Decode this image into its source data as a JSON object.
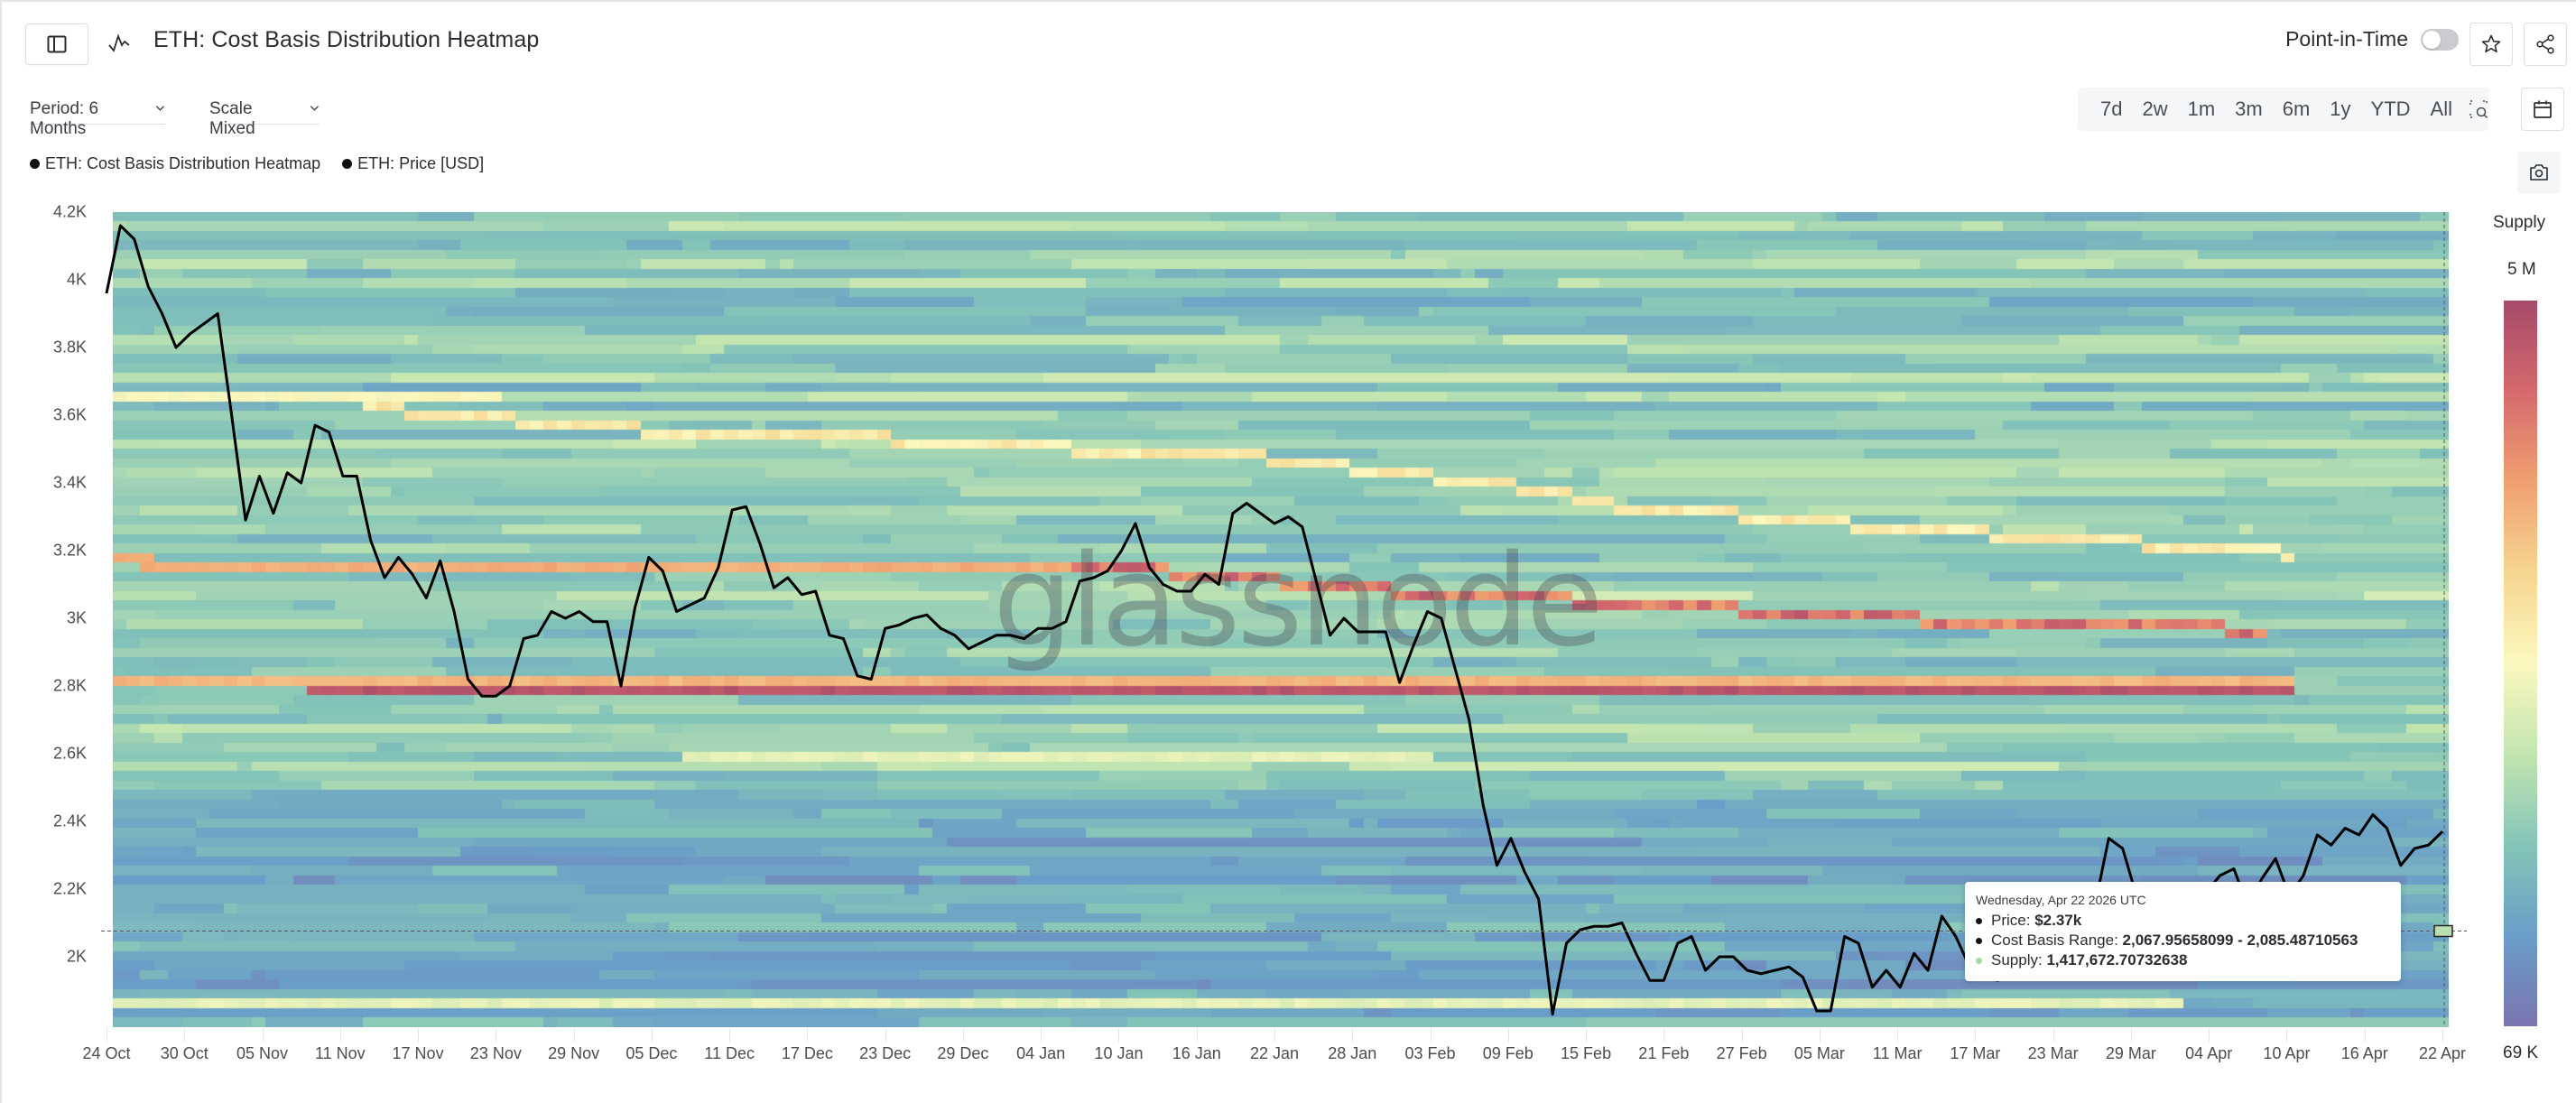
{
  "header": {
    "title": "ETH: Cost Basis Distribution Heatmap",
    "point_in_time_label": "Point-in-Time",
    "point_in_time_enabled": false
  },
  "controls": {
    "period_label": "Period: 6 Months",
    "scale_label": "Scale Mixed",
    "ranges": [
      "7d",
      "2w",
      "1m",
      "3m",
      "6m",
      "1y",
      "YTD",
      "All"
    ]
  },
  "icons": {
    "sidebar_toggle": "sidebar-icon",
    "title": "chart-pulse-icon",
    "star": "star-icon",
    "share": "share-icon",
    "zoom": "zoom-select-icon",
    "calendar": "calendar-icon",
    "camera": "camera-icon"
  },
  "legend": {
    "items": [
      {
        "label": "ETH: Cost Basis Distribution Heatmap",
        "color": "#111111"
      },
      {
        "label": "ETH: Price [USD]",
        "color": "#111111"
      }
    ]
  },
  "watermark": "glassnode",
  "colorbar": {
    "title": "Supply",
    "max_label": "5 M",
    "min_label": "69 K",
    "stops": [
      "#a54a6a",
      "#d5696d",
      "#f0a070",
      "#f6d690",
      "#fbf8bf",
      "#c3e5b0",
      "#85c5b8",
      "#6a9ec8",
      "#7a74b0"
    ]
  },
  "tooltip": {
    "date": "Wednesday, Apr 22 2026 UTC",
    "price_label": "Price: ",
    "price_value": "$2.37k",
    "range_label": "Cost Basis Range: ",
    "range_value": "2,067.95658099 - 2,085.48710563",
    "supply_label": "Supply: ",
    "supply_value": "1,417,672.70732638"
  },
  "chart_data": {
    "type": "heatmap",
    "title": "ETH: Cost Basis Distribution Heatmap",
    "xlabel": "",
    "ylabel": "",
    "ylim": [
      1790,
      4200
    ],
    "y_ticks": [
      {
        "label": "4.2K",
        "value": 4200
      },
      {
        "label": "4K",
        "value": 4000
      },
      {
        "label": "3.8K",
        "value": 3800
      },
      {
        "label": "3.6K",
        "value": 3600
      },
      {
        "label": "3.4K",
        "value": 3400
      },
      {
        "label": "3.2K",
        "value": 3200
      },
      {
        "label": "3K",
        "value": 3000
      },
      {
        "label": "2.8K",
        "value": 2800
      },
      {
        "label": "2.6K",
        "value": 2600
      },
      {
        "label": "2.4K",
        "value": 2400
      },
      {
        "label": "2.2K",
        "value": 2200
      },
      {
        "label": "2K",
        "value": 2000
      }
    ],
    "x_ticks": [
      "24 Oct",
      "30 Oct",
      "05 Nov",
      "11 Nov",
      "17 Nov",
      "23 Nov",
      "29 Nov",
      "05 Dec",
      "11 Dec",
      "17 Dec",
      "23 Dec",
      "29 Dec",
      "04 Jan",
      "10 Jan",
      "16 Jan",
      "22 Jan",
      "28 Jan",
      "03 Feb",
      "09 Feb",
      "15 Feb",
      "21 Feb",
      "27 Feb",
      "05 Mar",
      "11 Mar",
      "17 Mar",
      "23 Mar",
      "29 Mar",
      "04 Apr",
      "10 Apr",
      "16 Apr",
      "22 Apr"
    ],
    "x_range_days": 180,
    "colorbar_range": [
      "69 K",
      "5 M"
    ],
    "series": [
      {
        "name": "ETH: Price [USD]",
        "type": "line",
        "points": [
          [
            0,
            3960
          ],
          [
            1,
            4160
          ],
          [
            2,
            4120
          ],
          [
            3,
            3980
          ],
          [
            4,
            3900
          ],
          [
            5,
            3800
          ],
          [
            6,
            3840
          ],
          [
            7,
            3870
          ],
          [
            8,
            3900
          ],
          [
            9,
            3600
          ],
          [
            10,
            3290
          ],
          [
            11,
            3420
          ],
          [
            12,
            3310
          ],
          [
            13,
            3430
          ],
          [
            14,
            3400
          ],
          [
            15,
            3570
          ],
          [
            16,
            3550
          ],
          [
            17,
            3420
          ],
          [
            18,
            3420
          ],
          [
            19,
            3230
          ],
          [
            20,
            3120
          ],
          [
            21,
            3180
          ],
          [
            22,
            3130
          ],
          [
            23,
            3060
          ],
          [
            24,
            3170
          ],
          [
            25,
            3020
          ],
          [
            26,
            2820
          ],
          [
            27,
            2770
          ],
          [
            28,
            2770
          ],
          [
            29,
            2800
          ],
          [
            30,
            2940
          ],
          [
            31,
            2950
          ],
          [
            32,
            3020
          ],
          [
            33,
            3000
          ],
          [
            34,
            3020
          ],
          [
            35,
            2990
          ],
          [
            36,
            2990
          ],
          [
            37,
            2800
          ],
          [
            38,
            3030
          ],
          [
            39,
            3180
          ],
          [
            40,
            3140
          ],
          [
            41,
            3020
          ],
          [
            42,
            3040
          ],
          [
            43,
            3060
          ],
          [
            44,
            3150
          ],
          [
            45,
            3320
          ],
          [
            46,
            3330
          ],
          [
            47,
            3220
          ],
          [
            48,
            3090
          ],
          [
            49,
            3120
          ],
          [
            50,
            3070
          ],
          [
            51,
            3080
          ],
          [
            52,
            2950
          ],
          [
            53,
            2940
          ],
          [
            54,
            2830
          ],
          [
            55,
            2820
          ],
          [
            56,
            2970
          ],
          [
            57,
            2980
          ],
          [
            58,
            3000
          ],
          [
            59,
            3010
          ],
          [
            60,
            2970
          ],
          [
            61,
            2950
          ],
          [
            62,
            2910
          ],
          [
            63,
            2930
          ],
          [
            64,
            2950
          ],
          [
            65,
            2950
          ],
          [
            66,
            2940
          ],
          [
            67,
            2970
          ],
          [
            68,
            2970
          ],
          [
            69,
            2990
          ],
          [
            70,
            3110
          ],
          [
            71,
            3120
          ],
          [
            72,
            3140
          ],
          [
            73,
            3200
          ],
          [
            74,
            3280
          ],
          [
            75,
            3150
          ],
          [
            76,
            3100
          ],
          [
            77,
            3080
          ],
          [
            78,
            3080
          ],
          [
            79,
            3130
          ],
          [
            80,
            3100
          ],
          [
            81,
            3310
          ],
          [
            82,
            3340
          ],
          [
            83,
            3310
          ],
          [
            84,
            3280
          ],
          [
            85,
            3300
          ],
          [
            86,
            3270
          ],
          [
            87,
            3110
          ],
          [
            88,
            2950
          ],
          [
            89,
            3000
          ],
          [
            90,
            2960
          ],
          [
            91,
            2960
          ],
          [
            92,
            2960
          ],
          [
            93,
            2810
          ],
          [
            94,
            2920
          ],
          [
            95,
            3020
          ],
          [
            96,
            3000
          ],
          [
            97,
            2850
          ],
          [
            98,
            2700
          ],
          [
            99,
            2450
          ],
          [
            100,
            2270
          ],
          [
            101,
            2350
          ],
          [
            102,
            2250
          ],
          [
            103,
            2170
          ],
          [
            104,
            1830
          ],
          [
            105,
            2040
          ],
          [
            106,
            2080
          ],
          [
            107,
            2090
          ],
          [
            108,
            2090
          ],
          [
            109,
            2100
          ],
          [
            110,
            2010
          ],
          [
            111,
            1930
          ],
          [
            112,
            1930
          ],
          [
            113,
            2040
          ],
          [
            114,
            2060
          ],
          [
            115,
            1960
          ],
          [
            116,
            2000
          ],
          [
            117,
            2000
          ],
          [
            118,
            1960
          ],
          [
            119,
            1950
          ],
          [
            120,
            1960
          ],
          [
            121,
            1970
          ],
          [
            122,
            1940
          ],
          [
            123,
            1840
          ],
          [
            124,
            1840
          ],
          [
            125,
            2060
          ],
          [
            126,
            2040
          ],
          [
            127,
            1910
          ],
          [
            128,
            1960
          ],
          [
            129,
            1910
          ],
          [
            130,
            2010
          ],
          [
            131,
            1960
          ],
          [
            132,
            2120
          ],
          [
            133,
            2060
          ],
          [
            134,
            1970
          ],
          [
            135,
            1960
          ],
          [
            136,
            1930
          ],
          [
            137,
            2000
          ],
          [
            138,
            2040
          ],
          [
            139,
            2060
          ],
          [
            140,
            2080
          ],
          [
            141,
            2090
          ],
          [
            142,
            2110
          ],
          [
            143,
            2150
          ],
          [
            144,
            2350
          ],
          [
            145,
            2320
          ],
          [
            146,
            2180
          ],
          [
            147,
            2120
          ],
          [
            148,
            2100
          ],
          [
            149,
            2140
          ],
          [
            150,
            2200
          ],
          [
            151,
            2190
          ],
          [
            152,
            2240
          ],
          [
            153,
            2260
          ],
          [
            154,
            2150
          ],
          [
            155,
            2230
          ],
          [
            156,
            2290
          ],
          [
            157,
            2180
          ],
          [
            158,
            2240
          ],
          [
            159,
            2360
          ],
          [
            160,
            2330
          ],
          [
            161,
            2380
          ],
          [
            162,
            2360
          ],
          [
            163,
            2420
          ],
          [
            164,
            2380
          ],
          [
            165,
            2270
          ],
          [
            166,
            2320
          ],
          [
            167,
            2330
          ],
          [
            168,
            2370
          ]
        ]
      },
      {
        "name": "ETH: Cost Basis Distribution Heatmap",
        "type": "heatmap",
        "prominent_bands": [
          {
            "price": 2790,
            "from_day": 16,
            "to_day": 168,
            "intensity": 0.95,
            "note": "orange/red band ~2.79K"
          },
          {
            "price": 2820,
            "from_day": 0,
            "to_day": 168,
            "intensity": 0.7,
            "note": "cream band ~2.82K"
          },
          {
            "price": 3160,
            "from_day": 3,
            "to_day": 80,
            "intensity": 0.72
          },
          {
            "price": 3180,
            "from_day": 0,
            "to_day": 3,
            "intensity": 0.72
          },
          {
            "price": 3660,
            "from_day": 0,
            "to_day": 30,
            "intensity": 0.5
          },
          {
            "price": 1870,
            "from_day": 0,
            "to_day": 160,
            "intensity": 0.45
          },
          {
            "price": 2580,
            "from_day": 45,
            "to_day": 102,
            "intensity": 0.45
          },
          {
            "price": 2070,
            "from_day": 160,
            "to_day": 168,
            "intensity": 0.45
          }
        ],
        "descending_streak": [
          [
            20,
            3620
          ],
          [
            30,
            3590
          ],
          [
            40,
            3560
          ],
          [
            50,
            3540
          ],
          [
            60,
            3530
          ],
          [
            70,
            3510
          ],
          [
            80,
            3490
          ],
          [
            90,
            3470
          ],
          [
            96,
            3440
          ],
          [
            102,
            3420
          ],
          [
            106,
            3400
          ],
          [
            110,
            3380
          ],
          [
            114,
            3360
          ],
          [
            118,
            3320
          ],
          [
            124,
            3310
          ],
          [
            130,
            3290
          ],
          [
            136,
            3270
          ],
          [
            145,
            3250
          ],
          [
            155,
            3230
          ],
          [
            160,
            3210
          ],
          [
            168,
            3190
          ]
        ],
        "hot_streak": [
          [
            75,
            3150
          ],
          [
            86,
            3130
          ],
          [
            92,
            3100
          ],
          [
            100,
            3080
          ],
          [
            110,
            3060
          ],
          [
            118,
            3040
          ],
          [
            128,
            3020
          ],
          [
            136,
            3000
          ],
          [
            147,
            2990
          ],
          [
            158,
            2980
          ],
          [
            166,
            2960
          ]
        ]
      }
    ],
    "legend": [
      "ETH: Cost Basis Distribution Heatmap",
      "ETH: Price [USD]"
    ],
    "legend_position": "top-left",
    "grid": false
  }
}
